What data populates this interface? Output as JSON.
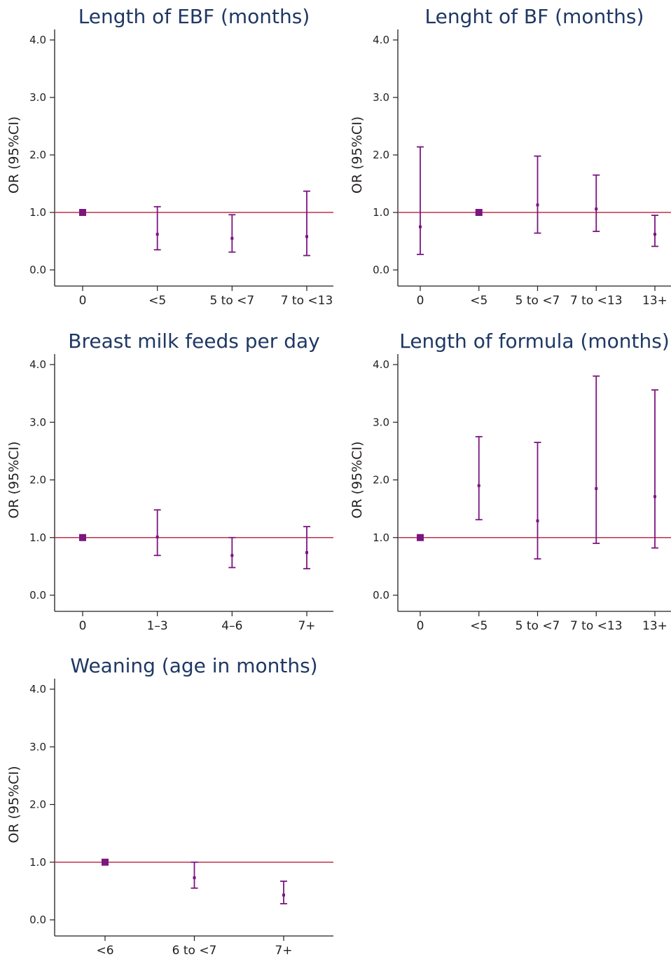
{
  "colors": {
    "axis": "#231f20",
    "title": "#1f3864",
    "reference": "#c0304a",
    "ci": "#7b1580"
  },
  "chart_data": [
    {
      "type": "errorbar",
      "title": "Length of EBF (months)",
      "ylabel": "OR (95%CI)",
      "ylim": [
        0,
        4
      ],
      "yticks": [
        "0.0",
        "1.0",
        "2.0",
        "3.0",
        "4.0"
      ],
      "reference_line": 1.0,
      "categories": [
        "0",
        "<5",
        "5 to <7",
        "7 to <13"
      ],
      "estimate": [
        1.0,
        0.62,
        0.55,
        0.58
      ],
      "lower": [
        null,
        0.35,
        0.31,
        0.25
      ],
      "upper": [
        null,
        1.1,
        0.96,
        1.37
      ],
      "reference_category": "0"
    },
    {
      "type": "errorbar",
      "title": "Lenght of BF (months)",
      "ylabel": "OR (95%CI)",
      "ylim": [
        0,
        4
      ],
      "yticks": [
        "0.0",
        "1.0",
        "2.0",
        "3.0",
        "4.0"
      ],
      "reference_line": 1.0,
      "categories": [
        "0",
        "<5",
        "5 to <7",
        "7 to <13",
        "13+"
      ],
      "estimate": [
        0.75,
        1.0,
        1.13,
        1.06,
        0.62
      ],
      "lower": [
        0.27,
        null,
        0.64,
        0.67,
        0.41
      ],
      "upper": [
        2.14,
        null,
        1.98,
        1.65,
        0.95
      ],
      "reference_category": "<5"
    },
    {
      "type": "errorbar",
      "title": "Breast milk feeds per day",
      "ylabel": "OR (95%CI)",
      "ylim": [
        0,
        4
      ],
      "yticks": [
        "0.0",
        "1.0",
        "2.0",
        "3.0",
        "4.0"
      ],
      "reference_line": 1.0,
      "categories": [
        "0",
        "1–3",
        "4–6",
        "7+"
      ],
      "estimate": [
        1.0,
        1.01,
        0.69,
        0.74
      ],
      "lower": [
        null,
        0.69,
        0.48,
        0.46
      ],
      "upper": [
        null,
        1.48,
        1.0,
        1.19
      ],
      "reference_category": "0"
    },
    {
      "type": "errorbar",
      "title": "Length of formula (months)",
      "ylabel": "OR (95%CI)",
      "ylim": [
        0,
        4
      ],
      "yticks": [
        "0.0",
        "1.0",
        "2.0",
        "3.0",
        "4.0"
      ],
      "reference_line": 1.0,
      "categories": [
        "0",
        "<5",
        "5 to <7",
        "7 to <13",
        "13+"
      ],
      "estimate": [
        1.0,
        1.9,
        1.29,
        1.85,
        1.71
      ],
      "lower": [
        null,
        1.31,
        0.63,
        0.9,
        0.82
      ],
      "upper": [
        null,
        2.75,
        2.65,
        3.8,
        3.56
      ],
      "reference_category": "0"
    },
    {
      "type": "errorbar",
      "title": "Weaning (age in months)",
      "ylabel": "OR (95%CI)",
      "ylim": [
        0,
        4
      ],
      "yticks": [
        "0.0",
        "1.0",
        "2.0",
        "3.0",
        "4.0"
      ],
      "reference_line": 1.0,
      "categories": [
        "<6",
        "6 to <7",
        "7+"
      ],
      "estimate": [
        1.0,
        0.73,
        0.43
      ],
      "lower": [
        null,
        0.55,
        0.28
      ],
      "upper": [
        null,
        1.0,
        0.67
      ],
      "reference_category": "<6"
    }
  ]
}
